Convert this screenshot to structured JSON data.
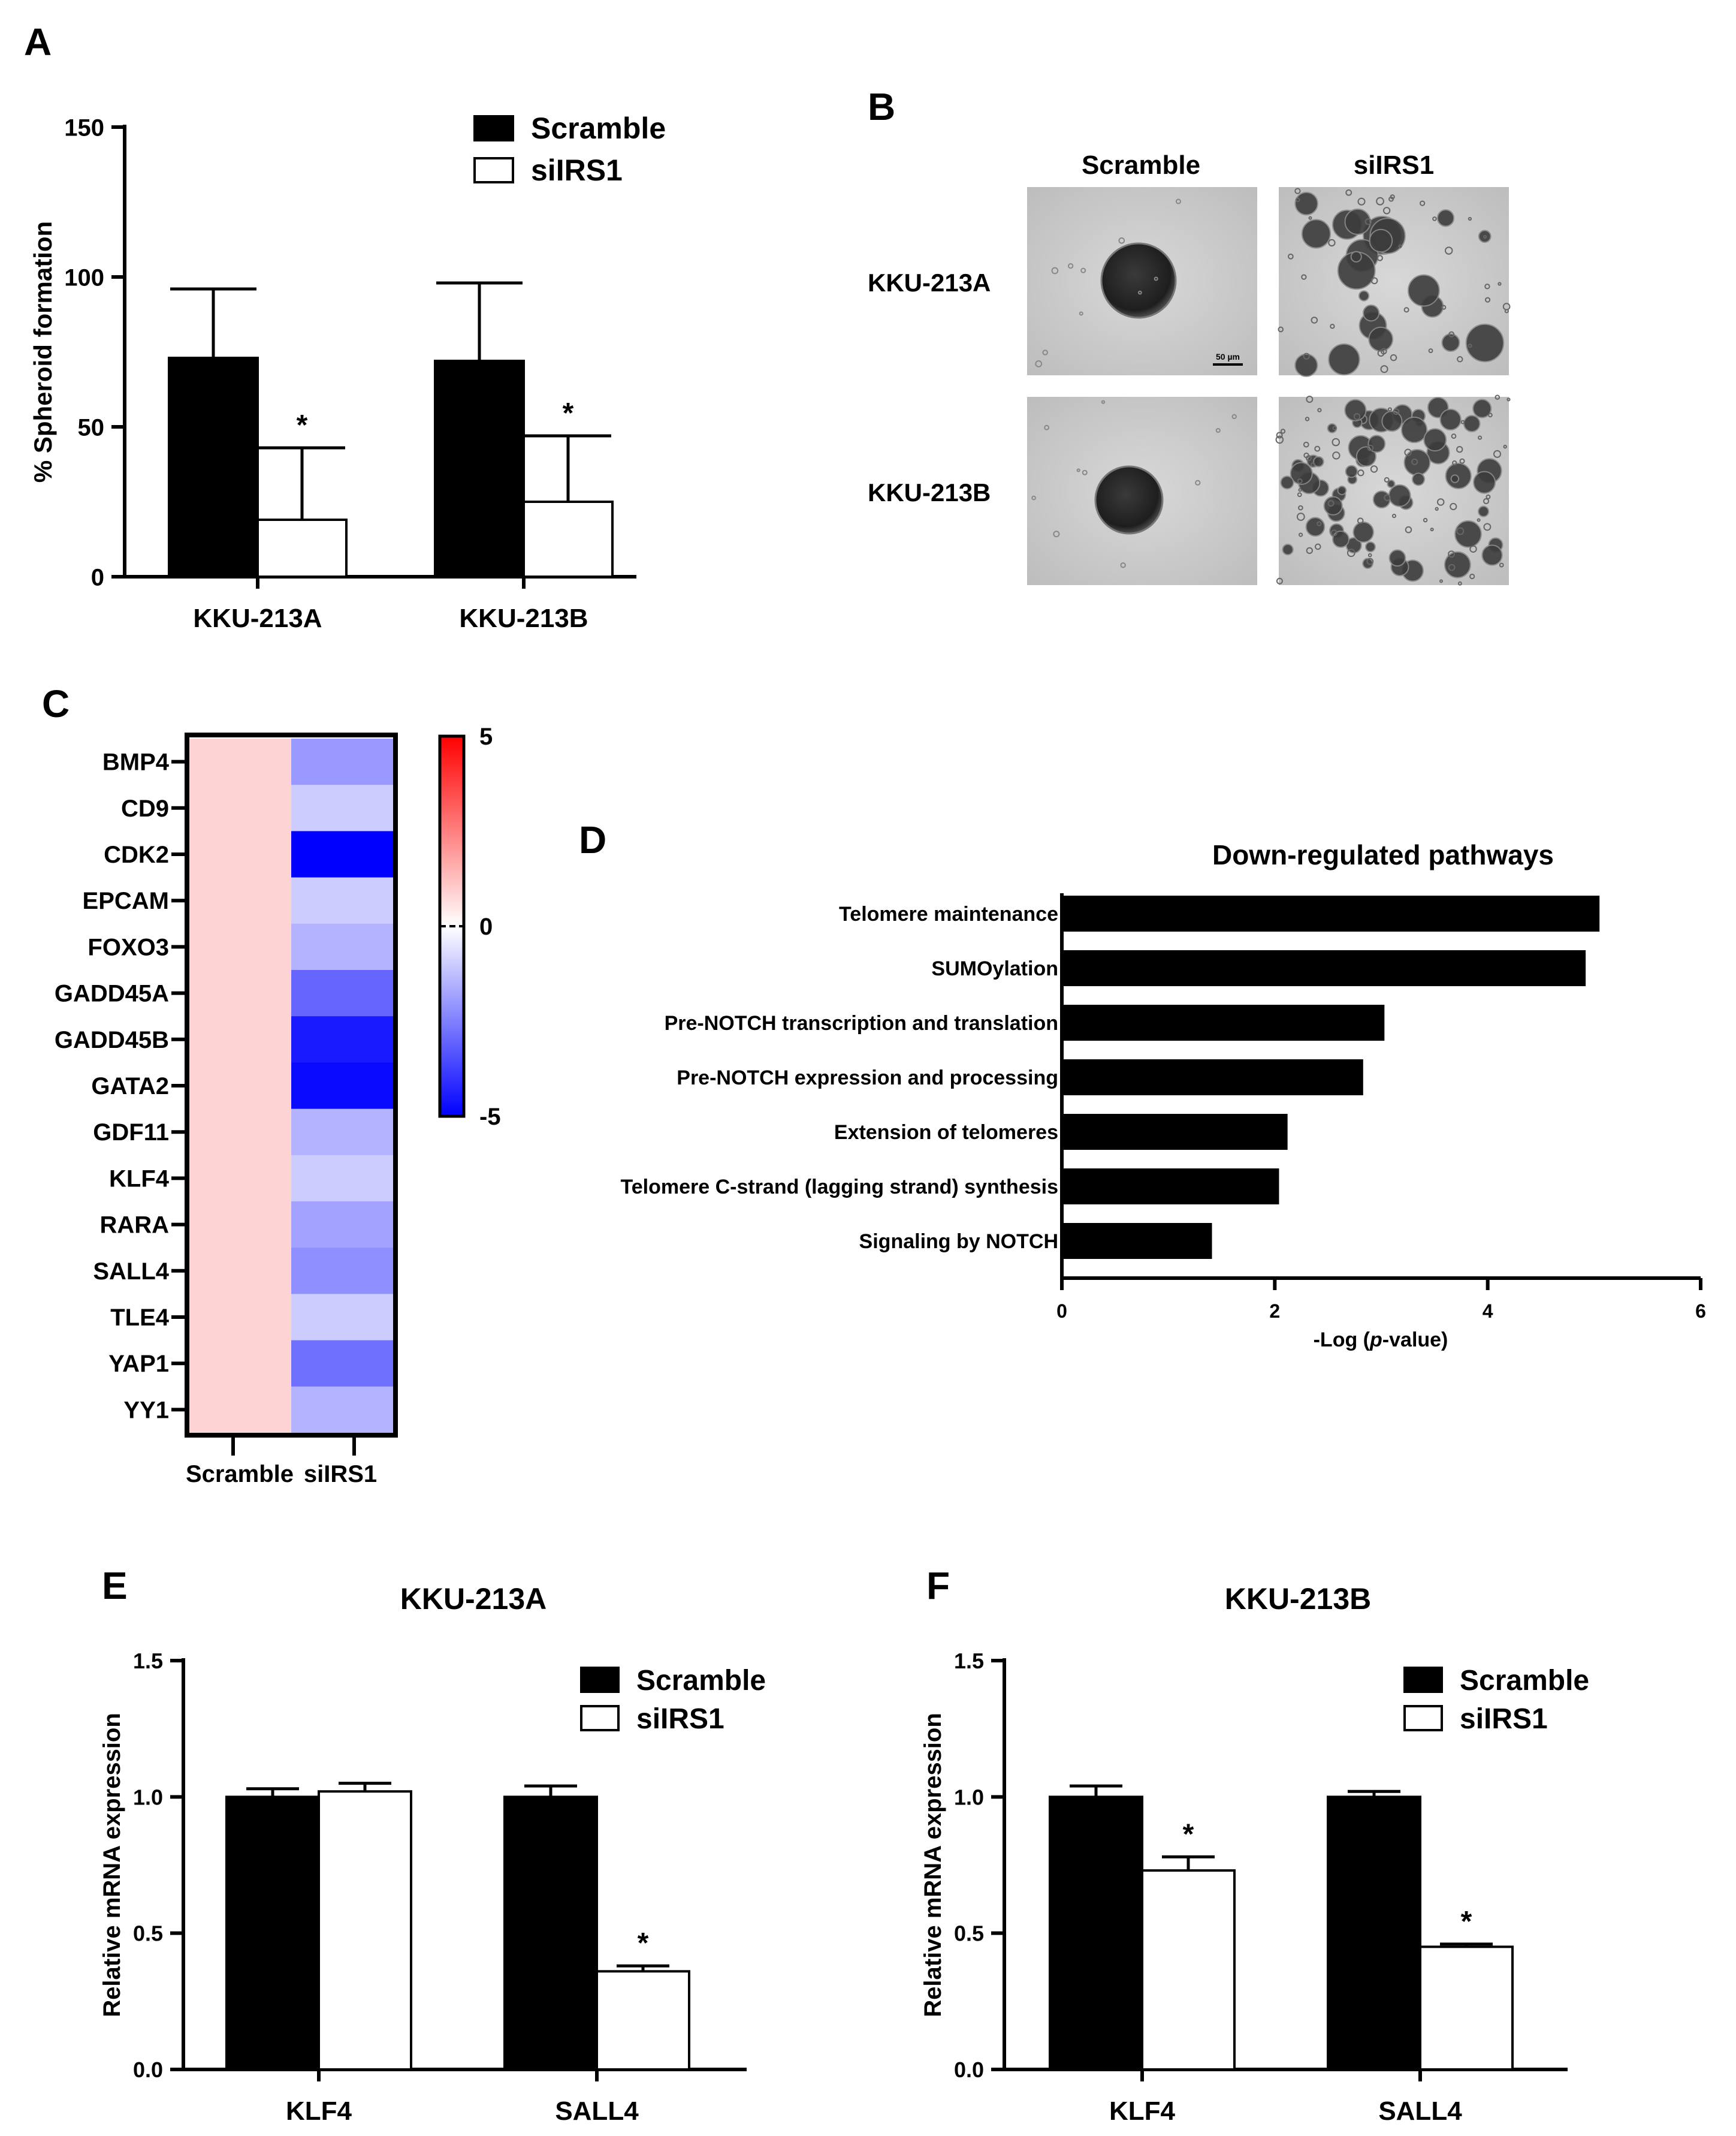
{
  "panel_letters": {
    "a": "A",
    "b": "B",
    "c": "C",
    "d": "D",
    "e": "E",
    "f": "F"
  },
  "colors": {
    "scramble": "#000000",
    "silrs1": "#ffffff",
    "heat_high": "#ff0000",
    "heat_mid": "#ffffff",
    "heat_low": "#0000ff"
  },
  "chart_data": [
    {
      "id": "A",
      "type": "bar",
      "title": "",
      "ylabel": "% Spheroid formation",
      "xlabel": "",
      "ylim": [
        0,
        150
      ],
      "yticks": [
        0,
        50,
        100,
        150
      ],
      "categories": [
        "KKU-213A",
        "KKU-213B"
      ],
      "series": [
        {
          "name": "Scramble",
          "values": [
            73,
            72
          ],
          "errors": [
            23,
            26
          ]
        },
        {
          "name": "siIRS1",
          "values": [
            19,
            25
          ],
          "errors": [
            24,
            22
          ]
        }
      ],
      "annotations": [
        {
          "category": "KKU-213A",
          "series": "siIRS1",
          "text": "*"
        },
        {
          "category": "KKU-213B",
          "series": "siIRS1",
          "text": "*"
        }
      ],
      "legend": "top-right"
    },
    {
      "id": "C",
      "type": "heatmap",
      "rows": [
        "BMP4",
        "CD9",
        "CDK2",
        "EPCAM",
        "FOXO3",
        "GADD45A",
        "GADD45B",
        "GATA2",
        "GDF11",
        "KLF4",
        "RARA",
        "SALL4",
        "TLE4",
        "YAP1",
        "YY1"
      ],
      "columns": [
        "Scramble",
        "siIRS1"
      ],
      "values": [
        [
          1,
          -2
        ],
        [
          1,
          -1
        ],
        [
          1,
          -5
        ],
        [
          1,
          -1
        ],
        [
          1,
          -1.5
        ],
        [
          1,
          -3
        ],
        [
          1,
          -4.5
        ],
        [
          1,
          -4.8
        ],
        [
          1,
          -1.5
        ],
        [
          1,
          -1
        ],
        [
          1,
          -1.8
        ],
        [
          1,
          -2.2
        ],
        [
          1,
          -1
        ],
        [
          1,
          -2.8
        ],
        [
          1,
          -1.5
        ]
      ],
      "colorbar": {
        "min": -5,
        "mid": 0,
        "max": 5,
        "tick_labels": [
          "5",
          "0",
          "-5"
        ]
      }
    },
    {
      "id": "D",
      "type": "bar",
      "orientation": "horizontal",
      "title": "Down-regulated pathways",
      "xlabel_pre": "-Log (",
      "xlabel_italic": "p",
      "xlabel_post": "-value)",
      "xlim": [
        0,
        6
      ],
      "xticks": [
        0,
        2,
        4,
        6
      ],
      "categories": [
        "Telomere maintenance",
        "SUMOylation",
        "Pre-NOTCH transcription and translation",
        "Pre-NOTCH expression and processing",
        "Extension of telomeres",
        "Telomere C-strand (lagging strand) synthesis",
        "Signaling by NOTCH"
      ],
      "values": [
        5.05,
        4.92,
        3.03,
        2.83,
        2.12,
        2.04,
        1.41
      ]
    },
    {
      "id": "E",
      "type": "bar",
      "title": "KKU-213A",
      "ylabel": "Relative mRNA expression",
      "ylim": [
        0,
        1.5
      ],
      "yticks": [
        "0.0",
        "0.5",
        "1.0",
        "1.5"
      ],
      "categories": [
        "KLF4",
        "SALL4"
      ],
      "series": [
        {
          "name": "Scramble",
          "values": [
            1.0,
            1.0
          ],
          "errors": [
            0.03,
            0.04
          ]
        },
        {
          "name": "siIRS1",
          "values": [
            1.02,
            0.36
          ],
          "errors": [
            0.03,
            0.02
          ]
        }
      ],
      "annotations": [
        {
          "category": "SALL4",
          "series": "siIRS1",
          "text": "*"
        }
      ],
      "legend": "top-right"
    },
    {
      "id": "F",
      "type": "bar",
      "title": "KKU-213B",
      "ylabel": "Relative mRNA expression",
      "ylim": [
        0,
        1.5
      ],
      "yticks": [
        "0.0",
        "0.5",
        "1.0",
        "1.5"
      ],
      "categories": [
        "KLF4",
        "SALL4"
      ],
      "series": [
        {
          "name": "Scramble",
          "values": [
            1.0,
            1.0
          ],
          "errors": [
            0.04,
            0.02
          ]
        },
        {
          "name": "siIRS1",
          "values": [
            0.73,
            0.45
          ],
          "errors": [
            0.05,
            0.01
          ]
        }
      ],
      "annotations": [
        {
          "category": "KLF4",
          "series": "siIRS1",
          "text": "*"
        },
        {
          "category": "SALL4",
          "series": "siIRS1",
          "text": "*"
        }
      ],
      "legend": "top-right"
    }
  ],
  "panel_b": {
    "columns": [
      "Scramble",
      "siIRS1"
    ],
    "rows": [
      "KKU-213A",
      "KKU-213B"
    ],
    "scale_bar": "50 µm"
  }
}
